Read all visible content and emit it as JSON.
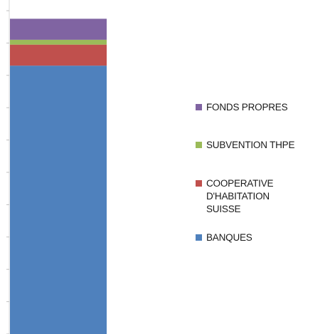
{
  "chart_data": {
    "type": "bar",
    "stacked": true,
    "categories": [
      ""
    ],
    "series": [
      {
        "name": "BANQUES",
        "values": [
          83
        ],
        "color": "#4f81bd"
      },
      {
        "name": "COOPERATIVE D'HABITATION SUISSE",
        "values": [
          6.5
        ],
        "color": "#c0504d"
      },
      {
        "name": "SUBVENTION THPE",
        "values": [
          1.5
        ],
        "color": "#9bbb59"
      },
      {
        "name": "FONDS PROPRES",
        "values": [
          6.5
        ],
        "color": "#8064a2"
      }
    ],
    "legend": {
      "position": "right",
      "order": [
        "FONDS PROPRES",
        "SUBVENTION THPE",
        "COOPERATIVE\nD'HABITATION\nSUISSE",
        "BANQUES"
      ]
    },
    "title": "",
    "xlabel": "",
    "ylabel": "",
    "ylim": [
      0,
      100
    ]
  }
}
